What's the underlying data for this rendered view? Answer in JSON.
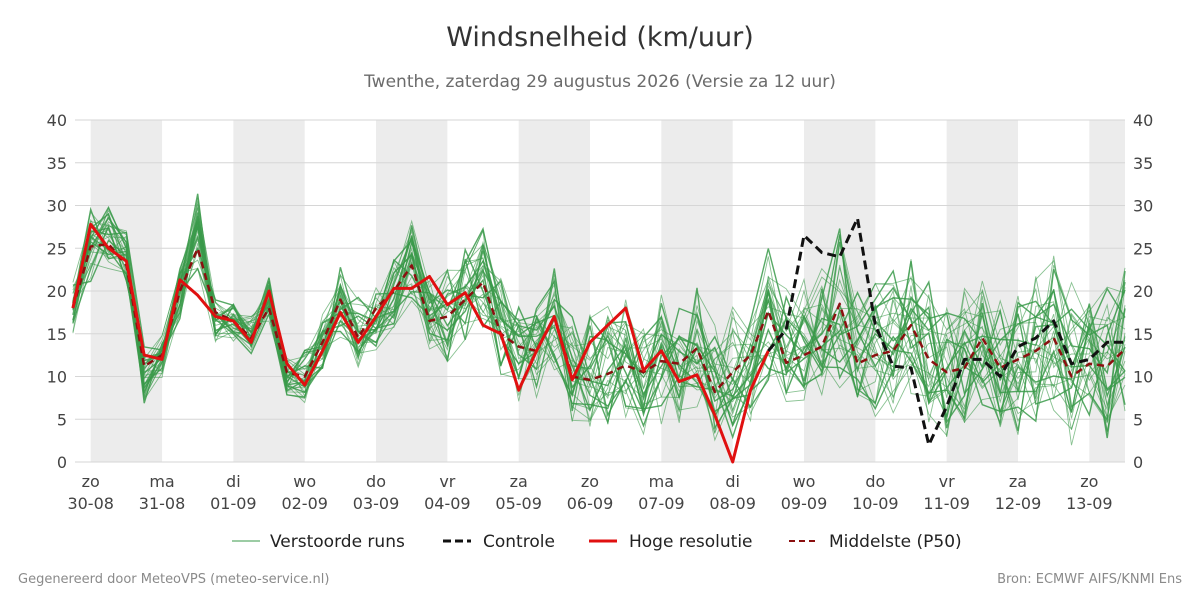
{
  "header": {
    "title": "Windsnelheid (km/uur)",
    "subtitle": "Twenthe, zaterdag 29 augustus 2026 (Versie za 12 uur)"
  },
  "footer": {
    "generated": "Gegenereerd door MeteoVPS (meteo-service.nl)",
    "source": "Bron: ECMWF AIFS/KNMI Ens"
  },
  "colors": {
    "ensemble": "#3a9a4a",
    "control": "#111111",
    "hires": "#e01010",
    "median": "#8b1010",
    "shade": "#ececec",
    "grid": "#d6d6d6"
  },
  "chart_data": {
    "type": "line",
    "title": "Windsnelheid (km/uur)",
    "ylim": [
      0,
      40
    ],
    "yticks": [
      0,
      5,
      10,
      15,
      20,
      25,
      30,
      35,
      40
    ],
    "xlim": [
      -0.22,
      14.5
    ],
    "x_unit": "days",
    "x_ticks": [
      {
        "day": "zo",
        "date": "30-08"
      },
      {
        "day": "ma",
        "date": "31-08"
      },
      {
        "day": "di",
        "date": "01-09"
      },
      {
        "day": "wo",
        "date": "02-09"
      },
      {
        "day": "do",
        "date": "03-09"
      },
      {
        "day": "vr",
        "date": "04-09"
      },
      {
        "day": "za",
        "date": "05-09"
      },
      {
        "day": "zo",
        "date": "06-09"
      },
      {
        "day": "ma",
        "date": "07-09"
      },
      {
        "day": "di",
        "date": "08-09"
      },
      {
        "day": "wo",
        "date": "09-09"
      },
      {
        "day": "do",
        "date": "10-09"
      },
      {
        "day": "vr",
        "date": "11-09"
      },
      {
        "day": "za",
        "date": "12-09"
      },
      {
        "day": "zo",
        "date": "13-09"
      }
    ],
    "shaded_days": [
      0,
      2,
      4,
      6,
      8,
      10,
      12,
      14
    ],
    "grid": true,
    "legend_position": "bottom",
    "series": [
      {
        "name": "Controle",
        "style": "dashed",
        "x": [
          -0.25,
          0,
          0.25,
          0.5,
          0.75,
          1,
          1.25,
          1.5,
          1.75,
          2,
          2.25,
          2.5,
          2.75,
          3,
          3.25,
          3.5,
          3.75,
          4,
          4.25,
          4.5,
          4.75,
          5,
          5.25,
          5.5,
          5.75,
          6,
          6.25,
          6.5,
          6.75,
          7,
          7.25,
          7.5,
          7.75,
          8,
          8.25,
          8.5,
          8.75,
          9,
          9.25,
          9.5,
          9.75,
          10,
          10.25,
          10.5,
          10.75,
          11,
          11.25,
          11.5,
          11.75,
          12,
          12.25,
          12.5,
          12.75,
          13,
          13.25,
          13.5,
          13.75,
          14,
          14.25,
          14.5
        ],
        "values": [
          18,
          27.8,
          25,
          23.5,
          12.5,
          12,
          21.3,
          19.5,
          17,
          16.5,
          14,
          20,
          11.5,
          9,
          13,
          17.5,
          14,
          17,
          20.3,
          20.3,
          21.7,
          18.4,
          19.8,
          16,
          15,
          8.4,
          13,
          17,
          9.6,
          14,
          16,
          18,
          10.7,
          13,
          9.4,
          10.2,
          5.5,
          0,
          8.4,
          13,
          15.5,
          26.5,
          24.5,
          24,
          28.5,
          16,
          11.2,
          11,
          2,
          6.5,
          12,
          12,
          10,
          13.5,
          14.5,
          16.5,
          11.5,
          12,
          14,
          14
        ]
      },
      {
        "name": "Hoge resolutie",
        "style": "solid",
        "x": [
          -0.25,
          0,
          0.25,
          0.5,
          0.75,
          1,
          1.25,
          1.5,
          1.75,
          2,
          2.25,
          2.5,
          2.75,
          3,
          3.25,
          3.5,
          3.75,
          4,
          4.25,
          4.5,
          4.75,
          5,
          5.25,
          5.5,
          5.75,
          6,
          6.25,
          6.5,
          6.75,
          7,
          7.25,
          7.5,
          7.75,
          8,
          8.25,
          8.5,
          8.75,
          9,
          9.25,
          9.5
        ],
        "values": [
          18,
          27.8,
          25,
          23.5,
          12.5,
          12,
          21.3,
          19.5,
          17,
          16.5,
          14,
          20,
          11.5,
          9,
          13,
          17.5,
          14,
          17,
          20.3,
          20.3,
          21.7,
          18.4,
          19.8,
          16,
          15,
          8.4,
          13,
          17,
          9.6,
          14,
          16,
          18,
          10.7,
          13,
          9.4,
          10.2,
          5.5,
          0,
          8.4,
          13
        ]
      },
      {
        "name": "Middelste (P50)",
        "style": "dashed",
        "x": [
          -0.25,
          0,
          0.25,
          0.5,
          0.75,
          1,
          1.25,
          1.5,
          1.75,
          2,
          2.25,
          2.5,
          2.75,
          3,
          3.25,
          3.5,
          3.75,
          4,
          4.25,
          4.5,
          4.75,
          5,
          5.25,
          5.5,
          5.75,
          6,
          6.25,
          6.5,
          6.75,
          7,
          7.25,
          7.5,
          7.75,
          8,
          8.25,
          8.5,
          8.75,
          9,
          9.25,
          9.5,
          9.75,
          10,
          10.25,
          10.5,
          10.75,
          11,
          11.25,
          11.5,
          11.75,
          12,
          12.25,
          12.5,
          12.75,
          13,
          13.25,
          13.5,
          13.75,
          14,
          14.25,
          14.5
        ],
        "values": [
          18,
          25.2,
          25.5,
          23,
          11.2,
          12.5,
          20,
          25,
          17.5,
          16.5,
          14.5,
          18,
          10.5,
          10,
          14,
          19,
          14.5,
          18,
          20,
          23,
          16.5,
          17,
          19,
          21,
          15,
          13.5,
          13,
          17,
          10,
          9.6,
          10.3,
          11.3,
          10.5,
          11.8,
          11.5,
          13.3,
          8.2,
          10.5,
          12.5,
          17.7,
          11.6,
          12.5,
          13.5,
          18.5,
          11.5,
          12.5,
          13,
          16,
          12,
          10.5,
          11,
          14.5,
          11,
          12,
          13,
          14.5,
          10,
          11.5,
          11.2,
          13.2
        ]
      }
    ],
    "ensemble_label": "Verstoorde runs",
    "ensemble": {
      "members": 30,
      "x": [
        -0.25,
        0,
        0.25,
        0.5,
        0.75,
        1,
        1.25,
        1.5,
        1.75,
        2,
        2.25,
        2.5,
        2.75,
        3,
        3.25,
        3.5,
        3.75,
        4,
        4.25,
        4.5,
        4.75,
        5,
        5.25,
        5.5,
        5.75,
        6,
        6.25,
        6.5,
        6.75,
        7,
        7.25,
        7.5,
        7.75,
        8,
        8.25,
        8.5,
        8.75,
        9,
        9.25,
        9.5,
        9.75,
        10,
        10.25,
        10.5,
        10.75,
        11,
        11.25,
        11.5,
        11.75,
        12,
        12.25,
        12.5,
        12.75,
        13,
        13.25,
        13.5,
        13.75,
        14,
        14.25,
        14.5
      ],
      "center": [
        18,
        25.5,
        26,
        24,
        10,
        12,
        20,
        27,
        16.5,
        16.5,
        15,
        19,
        10,
        10,
        14,
        18,
        15,
        17.5,
        20,
        24,
        17,
        17,
        20,
        22,
        16,
        13,
        13,
        17,
        11,
        10,
        11,
        12,
        10,
        12,
        11,
        13,
        9,
        11,
        12,
        17,
        12,
        13,
        14,
        18,
        12,
        13,
        14,
        16,
        12,
        11,
        12,
        15,
        11,
        12,
        13,
        15,
        11,
        12,
        11,
        14
      ],
      "spread": [
        3,
        4,
        3.5,
        3.5,
        3,
        2.5,
        3.5,
        4.5,
        2.5,
        2,
        2,
        2.5,
        2,
        3,
        3.5,
        4.5,
        4,
        4,
        4,
        5,
        5,
        5,
        5,
        5.5,
        5.5,
        5,
        5.5,
        6,
        5.5,
        6,
        6,
        6,
        6,
        6.5,
        6.5,
        6.5,
        6.5,
        7,
        7,
        7.5,
        7.5,
        7.5,
        7.5,
        8,
        8,
        8,
        8,
        8,
        8,
        8,
        8,
        8,
        8,
        8,
        8,
        8,
        8,
        8,
        8,
        8
      ]
    }
  },
  "legend": {
    "ensemble": "Verstoorde runs",
    "control": "Controle",
    "hires": "Hoge resolutie",
    "median": "Middelste (P50)"
  }
}
